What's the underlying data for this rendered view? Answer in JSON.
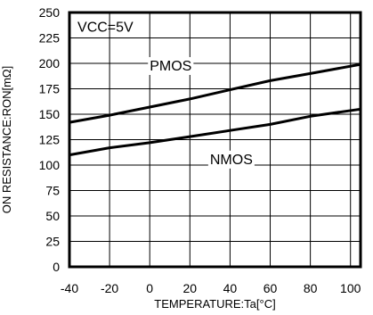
{
  "chart_data": {
    "type": "line",
    "xlabel": "TEMPERATURE:Ta[°C]",
    "ylabel": "ON RESISTANCE:RON[mΩ]",
    "annotation": "VCC=5V",
    "xlim": [
      -40,
      105
    ],
    "ylim": [
      0,
      250
    ],
    "x_ticks": [
      -40,
      -20,
      0,
      20,
      40,
      60,
      80,
      100
    ],
    "y_ticks": [
      0,
      25,
      50,
      75,
      100,
      125,
      150,
      175,
      200,
      225,
      250
    ],
    "grid": true,
    "series": [
      {
        "name": "PMOS",
        "x": [
          -40,
          -20,
          0,
          20,
          40,
          60,
          80,
          105
        ],
        "y": [
          142,
          149,
          157,
          165,
          174,
          183,
          190,
          199
        ]
      },
      {
        "name": "NMOS",
        "x": [
          -40,
          -20,
          0,
          20,
          40,
          60,
          80,
          105
        ],
        "y": [
          110,
          117,
          122,
          128,
          134,
          140,
          148,
          155
        ]
      }
    ]
  }
}
